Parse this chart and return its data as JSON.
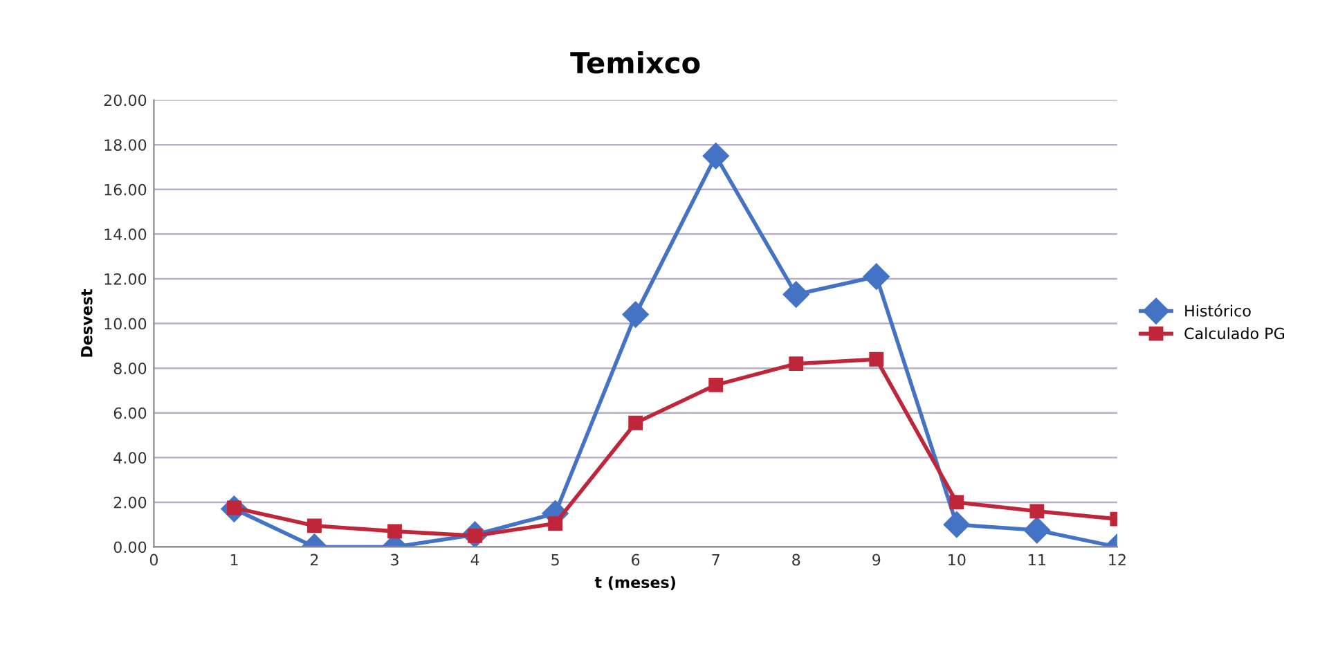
{
  "chart_data": {
    "type": "line",
    "title": "Temixco",
    "xlabel": "t (meses)",
    "ylabel": "Desvest",
    "x": [
      1,
      2,
      3,
      4,
      5,
      6,
      7,
      8,
      9,
      10,
      11,
      12
    ],
    "series": [
      {
        "name": "Histórico",
        "color": "#4472c4",
        "marker": "diamond",
        "values": [
          1.7,
          0.0,
          0.0,
          0.55,
          1.5,
          10.4,
          17.5,
          11.3,
          12.1,
          1.0,
          0.75,
          0.0
        ]
      },
      {
        "name": "Calculado PG",
        "color": "#c0263a",
        "marker": "square",
        "values": [
          1.75,
          0.95,
          0.7,
          0.5,
          1.05,
          5.55,
          7.25,
          8.2,
          8.4,
          2.0,
          1.6,
          1.25
        ]
      }
    ],
    "xlim": [
      0,
      12
    ],
    "xticks": [
      0,
      1,
      2,
      3,
      4,
      5,
      6,
      7,
      8,
      9,
      10,
      11,
      12
    ],
    "ylim": [
      0,
      20
    ],
    "yticks": [
      {
        "value": 0,
        "label": "0.00"
      },
      {
        "value": 2,
        "label": "2.00"
      },
      {
        "value": 4,
        "label": "4.00"
      },
      {
        "value": 6,
        "label": "6.00"
      },
      {
        "value": 8,
        "label": "8.00"
      },
      {
        "value": 10,
        "label": "10.00"
      },
      {
        "value": 12,
        "label": "12.00"
      },
      {
        "value": 14,
        "label": "14.00"
      },
      {
        "value": 16,
        "label": "16.00"
      },
      {
        "value": 18,
        "label": "18.00"
      },
      {
        "value": 20,
        "label": "20.00"
      }
    ],
    "grid": "y",
    "legend": "right",
    "line_style": "solid"
  }
}
